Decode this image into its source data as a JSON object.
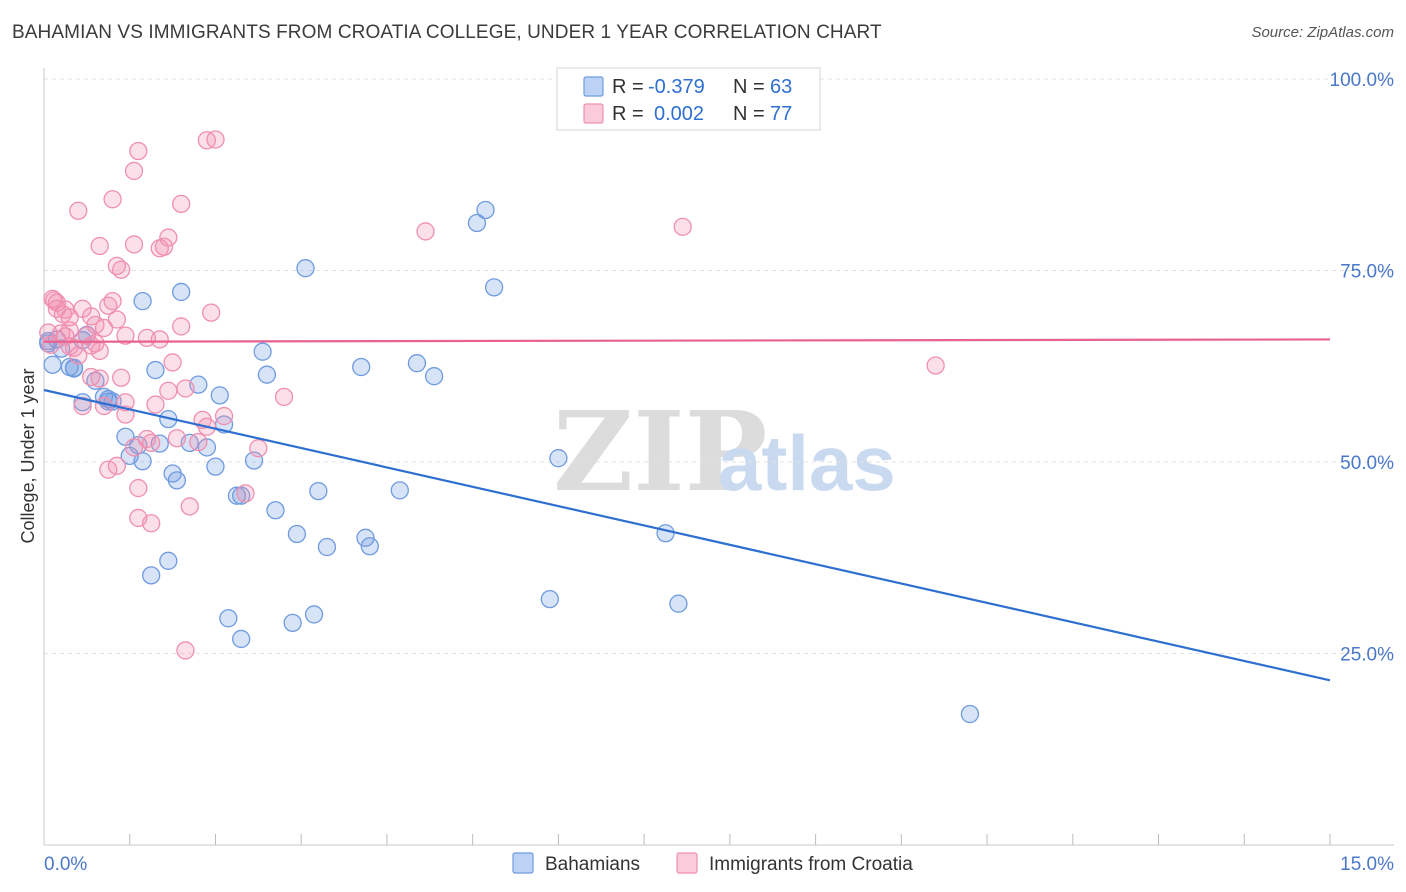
{
  "header": {
    "title": "BAHAMIAN VS IMMIGRANTS FROM CROATIA COLLEGE, UNDER 1 YEAR CORRELATION CHART",
    "source": "Source: ZipAtlas.com"
  },
  "watermark": {
    "zip": "ZIP",
    "atlas": "atlas"
  },
  "legend": {
    "r_label": "R =",
    "n_label": "N =",
    "rows": [
      {
        "r": "-0.379",
        "n": "63",
        "color": "#6f9be0"
      },
      {
        "r": "0.002",
        "n": "77",
        "color": "#f08fb0"
      }
    ]
  },
  "bottom_legend": [
    "Bahamians",
    "Immigrants from Croatia"
  ],
  "chart_data": {
    "type": "scatter",
    "title": "BAHAMIAN VS IMMIGRANTS FROM CROATIA COLLEGE, UNDER 1 YEAR CORRELATION CHART",
    "xlabel": "",
    "ylabel": "College, Under 1 year",
    "xlim": [
      0,
      15
    ],
    "ylim": [
      0,
      100
    ],
    "x_tick_labels": [
      "0.0%",
      "15.0%"
    ],
    "y_tick_labels": [
      "100.0%",
      "75.0%",
      "50.0%",
      "25.0%"
    ],
    "y_ticks": [
      100,
      75,
      50,
      25
    ],
    "series": [
      {
        "name": "Bahamians",
        "color": "#6f9be0",
        "line_color": "#2f6fd1",
        "trend": {
          "x": [
            0,
            15
          ],
          "y": [
            59.4,
            21.5
          ]
        },
        "points": [
          [
            0.05,
            65.5
          ],
          [
            0.1,
            62.7
          ],
          [
            0.15,
            66.0
          ],
          [
            0.2,
            64.8
          ],
          [
            0.3,
            62.4
          ],
          [
            0.35,
            62.3
          ],
          [
            0.45,
            65.9
          ],
          [
            0.5,
            66.6
          ],
          [
            0.45,
            57.8
          ],
          [
            0.6,
            60.6
          ],
          [
            0.7,
            58.5
          ],
          [
            0.8,
            57.9
          ],
          [
            0.75,
            58.2
          ],
          [
            0.95,
            53.3
          ],
          [
            1.0,
            50.8
          ],
          [
            1.1,
            52.2
          ],
          [
            1.15,
            50.1
          ],
          [
            1.15,
            71.0
          ],
          [
            1.3,
            62.0
          ],
          [
            1.35,
            52.4
          ],
          [
            1.45,
            55.6
          ],
          [
            1.5,
            48.5
          ],
          [
            1.55,
            47.6
          ],
          [
            1.6,
            72.2
          ],
          [
            1.7,
            52.5
          ],
          [
            1.8,
            60.1
          ],
          [
            1.9,
            51.9
          ],
          [
            2.0,
            49.4
          ],
          [
            2.05,
            58.7
          ],
          [
            2.1,
            54.9
          ],
          [
            2.15,
            29.6
          ],
          [
            2.25,
            45.6
          ],
          [
            2.3,
            26.9
          ],
          [
            2.3,
            45.6
          ],
          [
            2.45,
            50.2
          ],
          [
            2.55,
            64.4
          ],
          [
            2.6,
            61.4
          ],
          [
            2.7,
            43.7
          ],
          [
            2.9,
            29.0
          ],
          [
            2.95,
            40.6
          ],
          [
            3.05,
            75.3
          ],
          [
            3.15,
            30.1
          ],
          [
            3.2,
            46.2
          ],
          [
            3.3,
            38.9
          ],
          [
            3.7,
            62.4
          ],
          [
            3.75,
            40.1
          ],
          [
            3.8,
            39.0
          ],
          [
            4.15,
            46.3
          ],
          [
            4.35,
            62.9
          ],
          [
            4.55,
            61.2
          ],
          [
            5.05,
            81.2
          ],
          [
            5.15,
            82.9
          ],
          [
            5.25,
            72.8
          ],
          [
            1.25,
            35.2
          ],
          [
            1.45,
            37.1
          ],
          [
            6.0,
            50.5
          ],
          [
            5.9,
            32.1
          ],
          [
            7.25,
            40.7
          ],
          [
            7.4,
            31.5
          ],
          [
            10.8,
            17.1
          ],
          [
            0.75,
            57.9
          ],
          [
            0.35,
            62.2
          ],
          [
            0.05,
            65.8
          ]
        ]
      },
      {
        "name": "Immigrants from Croatia",
        "color": "#f08fb0",
        "line_color": "#e8628f",
        "trend": {
          "x": [
            0,
            15
          ],
          "y": [
            65.7,
            66.0
          ]
        },
        "points": [
          [
            0.05,
            66.9
          ],
          [
            0.08,
            65.3
          ],
          [
            0.1,
            71.3
          ],
          [
            0.12,
            71.1
          ],
          [
            0.15,
            70.0
          ],
          [
            0.2,
            66.8
          ],
          [
            0.22,
            69.3
          ],
          [
            0.25,
            69.9
          ],
          [
            0.3,
            68.9
          ],
          [
            0.3,
            65.1
          ],
          [
            0.35,
            64.9
          ],
          [
            0.4,
            63.9
          ],
          [
            0.45,
            70.0
          ],
          [
            0.5,
            66.5
          ],
          [
            0.55,
            65.2
          ],
          [
            0.6,
            67.9
          ],
          [
            0.65,
            64.5
          ],
          [
            0.7,
            67.5
          ],
          [
            0.75,
            70.4
          ],
          [
            0.8,
            71.0
          ],
          [
            0.85,
            68.6
          ],
          [
            0.55,
            61.1
          ],
          [
            0.65,
            60.9
          ],
          [
            0.45,
            57.3
          ],
          [
            0.7,
            57.3
          ],
          [
            0.75,
            49.0
          ],
          [
            0.85,
            49.5
          ],
          [
            0.95,
            56.2
          ],
          [
            0.95,
            57.8
          ],
          [
            1.05,
            51.9
          ],
          [
            1.1,
            46.6
          ],
          [
            1.1,
            42.7
          ],
          [
            1.25,
            42.0
          ],
          [
            1.2,
            53.0
          ],
          [
            1.3,
            57.5
          ],
          [
            1.45,
            59.3
          ],
          [
            1.55,
            53.1
          ],
          [
            1.6,
            67.7
          ],
          [
            1.65,
            59.6
          ],
          [
            1.7,
            44.2
          ],
          [
            1.8,
            52.6
          ],
          [
            1.85,
            55.5
          ],
          [
            1.9,
            54.6
          ],
          [
            1.95,
            69.5
          ],
          [
            0.4,
            82.8
          ],
          [
            0.65,
            78.2
          ],
          [
            0.8,
            84.3
          ],
          [
            0.85,
            75.6
          ],
          [
            0.9,
            75.1
          ],
          [
            1.05,
            78.4
          ],
          [
            1.05,
            88.0
          ],
          [
            1.1,
            90.6
          ],
          [
            1.35,
            77.9
          ],
          [
            1.4,
            78.1
          ],
          [
            1.45,
            79.3
          ],
          [
            1.6,
            83.7
          ],
          [
            1.9,
            92.0
          ],
          [
            2.0,
            92.1
          ],
          [
            2.35,
            45.9
          ],
          [
            2.5,
            51.8
          ],
          [
            2.8,
            58.5
          ],
          [
            4.45,
            80.1
          ],
          [
            7.45,
            80.7
          ],
          [
            10.4,
            62.6
          ],
          [
            1.65,
            25.4
          ],
          [
            1.2,
            66.2
          ],
          [
            1.35,
            66.0
          ],
          [
            0.25,
            66.4
          ],
          [
            0.15,
            70.8
          ],
          [
            0.3,
            67.2
          ],
          [
            0.9,
            61.0
          ],
          [
            1.25,
            52.5
          ],
          [
            0.6,
            65.5
          ],
          [
            0.95,
            66.5
          ],
          [
            1.5,
            63.0
          ],
          [
            2.1,
            56.0
          ],
          [
            0.55,
            69.0
          ]
        ]
      }
    ]
  }
}
